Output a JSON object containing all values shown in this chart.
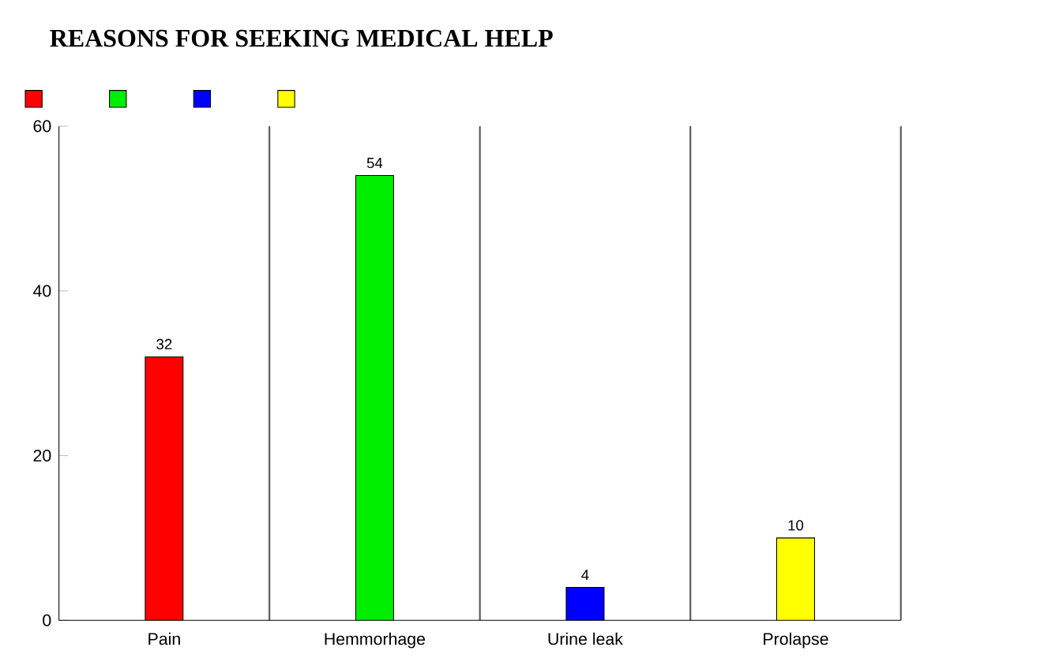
{
  "chart_data": {
    "type": "bar",
    "title": "REASONS FOR SEEKING MEDICAL HELP",
    "categories": [
      "Pain",
      "Hemmorhage",
      "Urine leak",
      "Prolapse"
    ],
    "series": [
      {
        "color": "#ff0000",
        "values": [
          32,
          null,
          null,
          null
        ]
      },
      {
        "color": "#00ee00",
        "values": [
          null,
          54,
          null,
          null
        ]
      },
      {
        "color": "#0000ff",
        "values": [
          null,
          null,
          4,
          null
        ]
      },
      {
        "color": "#ffff00",
        "values": [
          null,
          null,
          null,
          10
        ]
      }
    ],
    "ylim": [
      0,
      60
    ],
    "yticks": [
      0,
      20,
      40,
      60
    ],
    "grid": "x",
    "data_labels": true
  }
}
